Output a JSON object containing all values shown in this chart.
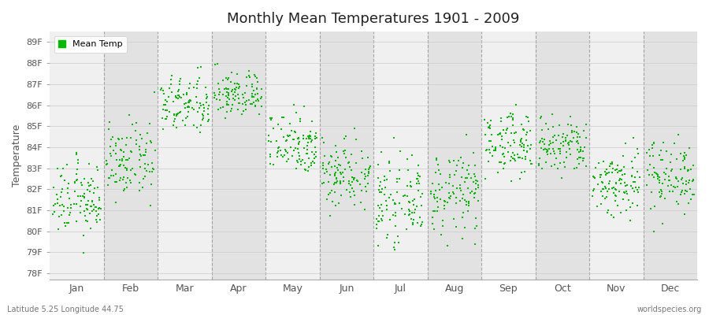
{
  "title": "Monthly Mean Temperatures 1901 - 2009",
  "ylabel": "Temperature",
  "xlabel_labels": [
    "Jan",
    "Feb",
    "Mar",
    "Apr",
    "May",
    "Jun",
    "Jul",
    "Aug",
    "Sep",
    "Oct",
    "Nov",
    "Dec"
  ],
  "ytick_labels": [
    "78F",
    "79F",
    "80F",
    "81F",
    "82F",
    "83F",
    "84F",
    "85F",
    "86F",
    "87F",
    "88F",
    "89F"
  ],
  "ytick_values": [
    78,
    79,
    80,
    81,
    82,
    83,
    84,
    85,
    86,
    87,
    88,
    89
  ],
  "ylim": [
    77.7,
    89.5
  ],
  "dot_color": "#00bb00",
  "dot_size": 3,
  "background_light": "#f0f0f0",
  "background_dark": "#e2e2e2",
  "fig_background": "#ffffff",
  "dashed_line_color": "#888888",
  "legend_label": "Mean Temp",
  "footer_left": "Latitude 5.25 Longitude 44.75",
  "footer_right": "worldspecies.org",
  "n_years": 109,
  "monthly_means": [
    81.5,
    83.3,
    86.0,
    86.5,
    84.2,
    82.8,
    81.4,
    81.8,
    84.2,
    84.0,
    82.3,
    82.7
  ],
  "monthly_stds": [
    0.85,
    0.85,
    0.7,
    0.55,
    0.75,
    0.85,
    0.9,
    0.95,
    0.75,
    0.7,
    0.85,
    0.85
  ]
}
